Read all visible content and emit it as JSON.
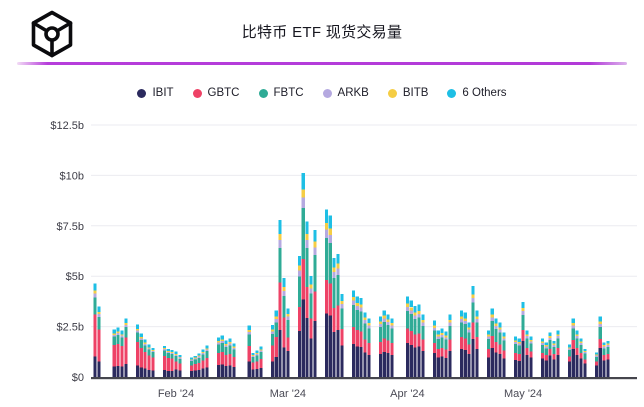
{
  "header": {
    "title": "比特币 ETF 现货交易量",
    "logo": "blockworks-cube-logo"
  },
  "accent": {
    "divider_gradient_main": "#b23ad8",
    "divider_gradient_light": "#f2dcf5"
  },
  "chart_data": {
    "type": "bar",
    "stacked": true,
    "title": "比特币 ETF 现货交易量",
    "xlabel": "",
    "ylabel": "",
    "y_unit": "USD billions",
    "ylim": [
      0,
      12.5
    ],
    "grid": true,
    "legend_position": "top",
    "y_ticks": [
      {
        "label": "$12.5b",
        "value": 12.5
      },
      {
        "label": "$10b",
        "value": 10
      },
      {
        "label": "$7.5b",
        "value": 7.5
      },
      {
        "label": "$5b",
        "value": 5
      },
      {
        "label": "$2.5b",
        "value": 2.5
      },
      {
        "label": "$0",
        "value": 0
      }
    ],
    "x_ticks": [
      {
        "label": "Feb '24",
        "date": "2024-02-01"
      },
      {
        "label": "Mar '24",
        "date": "2024-03-01"
      },
      {
        "label": "Apr '24",
        "date": "2024-04-01"
      },
      {
        "label": "May '24",
        "date": "2024-05-01"
      }
    ],
    "series": [
      {
        "name": "IBIT",
        "color": "#2b2a5e"
      },
      {
        "name": "GBTC",
        "color": "#ee4266"
      },
      {
        "name": "FBTC",
        "color": "#2fab96"
      },
      {
        "name": "ARKB",
        "color": "#b5a9e0"
      },
      {
        "name": "BITB",
        "color": "#f5cd44"
      },
      {
        "name": "6 Others",
        "color": "#1ebfe5"
      }
    ],
    "series_order": [
      "IBIT",
      "GBTC",
      "FBTC",
      "ARKB",
      "BITB",
      "6 Others"
    ],
    "days": [
      {
        "date": "2024-01-11",
        "v": [
          1.02,
          2.09,
          0.84,
          0.19,
          0.14,
          0.37
        ]
      },
      {
        "date": "2024-01-12",
        "v": [
          0.77,
          1.58,
          0.63,
          0.14,
          0.11,
          0.27
        ]
      },
      {
        "date": "2024-01-16",
        "v": [
          0.52,
          1.06,
          0.42,
          0.09,
          0.07,
          0.19
        ]
      },
      {
        "date": "2024-01-17",
        "v": [
          0.54,
          1.1,
          0.44,
          0.1,
          0.07,
          0.2
        ]
      },
      {
        "date": "2024-01-18",
        "v": [
          0.51,
          1.04,
          0.41,
          0.09,
          0.07,
          0.18
        ]
      },
      {
        "date": "2024-01-19",
        "v": [
          0.64,
          1.31,
          0.52,
          0.12,
          0.09,
          0.22
        ]
      },
      {
        "date": "2024-01-22",
        "v": [
          0.57,
          1.17,
          0.47,
          0.1,
          0.08,
          0.21
        ]
      },
      {
        "date": "2024-01-23",
        "v": [
          0.47,
          0.97,
          0.39,
          0.09,
          0.06,
          0.17
        ]
      },
      {
        "date": "2024-01-24",
        "v": [
          0.41,
          0.83,
          0.33,
          0.07,
          0.06,
          0.15
        ]
      },
      {
        "date": "2024-01-25",
        "v": [
          0.35,
          0.72,
          0.29,
          0.06,
          0.05,
          0.13
        ]
      },
      {
        "date": "2024-01-26",
        "v": [
          0.32,
          0.65,
          0.26,
          0.06,
          0.04,
          0.12
        ]
      },
      {
        "date": "2024-01-29",
        "v": [
          0.34,
          0.7,
          0.28,
          0.06,
          0.05,
          0.12
        ]
      },
      {
        "date": "2024-01-30",
        "v": [
          0.31,
          0.63,
          0.25,
          0.06,
          0.04,
          0.11
        ]
      },
      {
        "date": "2024-01-31",
        "v": [
          0.3,
          0.61,
          0.24,
          0.05,
          0.04,
          0.11
        ]
      },
      {
        "date": "2024-02-01",
        "v": [
          0.38,
          0.38,
          0.28,
          0.06,
          0.05,
          0.11
        ]
      },
      {
        "date": "2024-02-02",
        "v": [
          0.33,
          0.33,
          0.24,
          0.06,
          0.04,
          0.1
        ]
      },
      {
        "date": "2024-02-05",
        "v": [
          0.29,
          0.29,
          0.21,
          0.05,
          0.04,
          0.09
        ]
      },
      {
        "date": "2024-02-06",
        "v": [
          0.32,
          0.32,
          0.23,
          0.05,
          0.04,
          0.09
        ]
      },
      {
        "date": "2024-02-07",
        "v": [
          0.35,
          0.35,
          0.25,
          0.06,
          0.05,
          0.1
        ]
      },
      {
        "date": "2024-02-08",
        "v": [
          0.41,
          0.41,
          0.3,
          0.07,
          0.05,
          0.12
        ]
      },
      {
        "date": "2024-02-09",
        "v": [
          0.47,
          0.47,
          0.34,
          0.08,
          0.06,
          0.14
        ]
      },
      {
        "date": "2024-02-12",
        "v": [
          0.59,
          0.59,
          0.43,
          0.1,
          0.08,
          0.18
        ]
      },
      {
        "date": "2024-02-13",
        "v": [
          0.62,
          0.62,
          0.45,
          0.1,
          0.08,
          0.18
        ]
      },
      {
        "date": "2024-02-14",
        "v": [
          0.54,
          0.54,
          0.4,
          0.09,
          0.07,
          0.16
        ]
      },
      {
        "date": "2024-02-15",
        "v": [
          0.57,
          0.57,
          0.42,
          0.1,
          0.08,
          0.17
        ]
      },
      {
        "date": "2024-02-16",
        "v": [
          0.5,
          0.5,
          0.36,
          0.08,
          0.07,
          0.15
        ]
      },
      {
        "date": "2024-02-20",
        "v": [
          0.77,
          0.77,
          0.56,
          0.13,
          0.1,
          0.23
        ]
      },
      {
        "date": "2024-02-21",
        "v": [
          0.36,
          0.36,
          0.26,
          0.06,
          0.05,
          0.11
        ]
      },
      {
        "date": "2024-02-22",
        "v": [
          0.39,
          0.39,
          0.29,
          0.07,
          0.05,
          0.12
        ]
      },
      {
        "date": "2024-02-23",
        "v": [
          0.45,
          0.45,
          0.33,
          0.08,
          0.06,
          0.14
        ]
      },
      {
        "date": "2024-02-26",
        "v": [
          0.78,
          0.78,
          0.57,
          0.13,
          0.1,
          0.23
        ]
      },
      {
        "date": "2024-02-27",
        "v": [
          0.99,
          0.99,
          0.73,
          0.17,
          0.13,
          0.3
        ]
      },
      {
        "date": "2024-02-28",
        "v": [
          2.34,
          2.34,
          1.72,
          0.39,
          0.31,
          0.7
        ]
      },
      {
        "date": "2024-02-29",
        "v": [
          1.47,
          1.47,
          1.08,
          0.25,
          0.2,
          0.44
        ]
      },
      {
        "date": "2024-03-01",
        "v": [
          1.29,
          0.68,
          0.85,
          0.17,
          0.14,
          0.27
        ]
      },
      {
        "date": "2024-03-04",
        "v": [
          2.28,
          1.2,
          1.5,
          0.3,
          0.24,
          0.48
        ]
      },
      {
        "date": "2024-03-05",
        "v": [
          3.84,
          2.02,
          2.53,
          0.51,
          0.4,
          0.81
        ]
      },
      {
        "date": "2024-03-06",
        "v": [
          2.93,
          1.54,
          1.93,
          0.39,
          0.31,
          0.62
        ]
      },
      {
        "date": "2024-03-07",
        "v": [
          1.9,
          1.0,
          1.25,
          0.25,
          0.2,
          0.4
        ]
      },
      {
        "date": "2024-03-08",
        "v": [
          2.77,
          1.46,
          1.83,
          0.37,
          0.29,
          0.58
        ]
      },
      {
        "date": "2024-03-11",
        "v": [
          3.15,
          1.66,
          2.08,
          0.42,
          0.33,
          0.66
        ]
      },
      {
        "date": "2024-03-12",
        "v": [
          3.04,
          1.6,
          2.0,
          0.4,
          0.32,
          0.64
        ]
      },
      {
        "date": "2024-03-13",
        "v": [
          2.24,
          1.18,
          1.48,
          0.3,
          0.24,
          0.47
        ]
      },
      {
        "date": "2024-03-14",
        "v": [
          2.32,
          1.22,
          1.53,
          0.31,
          0.24,
          0.49
        ]
      },
      {
        "date": "2024-03-15",
        "v": [
          1.56,
          0.82,
          1.03,
          0.21,
          0.16,
          0.33
        ]
      },
      {
        "date": "2024-03-18",
        "v": [
          1.63,
          0.86,
          1.08,
          0.22,
          0.17,
          0.34
        ]
      },
      {
        "date": "2024-03-19",
        "v": [
          1.52,
          0.8,
          1.0,
          0.2,
          0.16,
          0.32
        ]
      },
      {
        "date": "2024-03-20",
        "v": [
          1.48,
          0.78,
          0.98,
          0.2,
          0.16,
          0.31
        ]
      },
      {
        "date": "2024-03-21",
        "v": [
          1.22,
          0.64,
          0.8,
          0.16,
          0.13,
          0.26
        ]
      },
      {
        "date": "2024-03-22",
        "v": [
          1.1,
          0.58,
          0.73,
          0.15,
          0.12,
          0.23
        ]
      },
      {
        "date": "2024-03-25",
        "v": [
          1.14,
          0.6,
          0.75,
          0.15,
          0.12,
          0.24
        ]
      },
      {
        "date": "2024-03-26",
        "v": [
          1.25,
          0.66,
          0.83,
          0.17,
          0.13,
          0.26
        ]
      },
      {
        "date": "2024-03-27",
        "v": [
          1.18,
          0.62,
          0.78,
          0.16,
          0.12,
          0.25
        ]
      },
      {
        "date": "2024-03-28",
        "v": [
          1.1,
          0.58,
          0.73,
          0.15,
          0.12,
          0.23
        ]
      },
      {
        "date": "2024-04-01",
        "v": [
          1.68,
          0.72,
          0.88,
          0.2,
          0.16,
          0.36
        ]
      },
      {
        "date": "2024-04-02",
        "v": [
          1.6,
          0.68,
          0.84,
          0.19,
          0.15,
          0.34
        ]
      },
      {
        "date": "2024-04-03",
        "v": [
          1.47,
          0.63,
          0.77,
          0.18,
          0.14,
          0.32
        ]
      },
      {
        "date": "2024-04-04",
        "v": [
          1.51,
          0.65,
          0.79,
          0.18,
          0.14,
          0.32
        ]
      },
      {
        "date": "2024-04-05",
        "v": [
          1.3,
          0.56,
          0.68,
          0.16,
          0.12,
          0.28
        ]
      },
      {
        "date": "2024-04-08",
        "v": [
          1.18,
          0.5,
          0.62,
          0.14,
          0.11,
          0.25
        ]
      },
      {
        "date": "2024-04-09",
        "v": [
          0.97,
          0.41,
          0.51,
          0.12,
          0.09,
          0.21
        ]
      },
      {
        "date": "2024-04-10",
        "v": [
          1.01,
          0.43,
          0.53,
          0.12,
          0.1,
          0.22
        ]
      },
      {
        "date": "2024-04-11",
        "v": [
          0.95,
          0.41,
          0.5,
          0.11,
          0.09,
          0.2
        ]
      },
      {
        "date": "2024-04-12",
        "v": [
          1.3,
          0.56,
          0.68,
          0.16,
          0.12,
          0.28
        ]
      },
      {
        "date": "2024-04-15",
        "v": [
          1.39,
          0.59,
          0.73,
          0.17,
          0.13,
          0.3
        ]
      },
      {
        "date": "2024-04-16",
        "v": [
          1.34,
          0.58,
          0.7,
          0.16,
          0.13,
          0.29
        ]
      },
      {
        "date": "2024-04-17",
        "v": [
          1.13,
          0.49,
          0.59,
          0.14,
          0.11,
          0.24
        ]
      },
      {
        "date": "2024-04-18",
        "v": [
          1.89,
          0.81,
          0.99,
          0.23,
          0.18,
          0.41
        ]
      },
      {
        "date": "2024-04-19",
        "v": [
          1.39,
          0.59,
          0.73,
          0.17,
          0.13,
          0.3
        ]
      },
      {
        "date": "2024-04-22",
        "v": [
          0.97,
          0.41,
          0.51,
          0.12,
          0.09,
          0.21
        ]
      },
      {
        "date": "2024-04-23",
        "v": [
          1.43,
          0.61,
          0.75,
          0.17,
          0.14,
          0.31
        ]
      },
      {
        "date": "2024-04-24",
        "v": [
          1.22,
          0.52,
          0.64,
          0.15,
          0.12,
          0.26
        ]
      },
      {
        "date": "2024-04-25",
        "v": [
          1.13,
          0.49,
          0.59,
          0.14,
          0.11,
          0.24
        ]
      },
      {
        "date": "2024-04-26",
        "v": [
          0.92,
          0.4,
          0.48,
          0.11,
          0.09,
          0.2
        ]
      },
      {
        "date": "2024-04-29",
        "v": [
          0.84,
          0.36,
          0.44,
          0.1,
          0.08,
          0.18
        ]
      },
      {
        "date": "2024-04-30",
        "v": [
          0.8,
          0.34,
          0.42,
          0.1,
          0.08,
          0.17
        ]
      },
      {
        "date": "2024-05-01",
        "v": [
          1.78,
          0.56,
          0.74,
          0.19,
          0.15,
          0.3
        ]
      },
      {
        "date": "2024-05-02",
        "v": [
          1.1,
          0.35,
          0.46,
          0.12,
          0.09,
          0.18
        ]
      },
      {
        "date": "2024-05-03",
        "v": [
          0.96,
          0.3,
          0.4,
          0.1,
          0.08,
          0.16
        ]
      },
      {
        "date": "2024-05-06",
        "v": [
          0.91,
          0.29,
          0.38,
          0.1,
          0.08,
          0.15
        ]
      },
      {
        "date": "2024-05-07",
        "v": [
          0.82,
          0.26,
          0.34,
          0.09,
          0.07,
          0.14
        ]
      },
      {
        "date": "2024-05-08",
        "v": [
          1.06,
          0.33,
          0.44,
          0.11,
          0.09,
          0.18
        ]
      },
      {
        "date": "2024-05-09",
        "v": [
          0.86,
          0.27,
          0.36,
          0.09,
          0.07,
          0.14
        ]
      },
      {
        "date": "2024-05-10",
        "v": [
          1.1,
          0.35,
          0.46,
          0.12,
          0.09,
          0.18
        ]
      },
      {
        "date": "2024-05-13",
        "v": [
          0.77,
          0.24,
          0.32,
          0.08,
          0.06,
          0.13
        ]
      },
      {
        "date": "2024-05-14",
        "v": [
          1.39,
          0.44,
          0.58,
          0.15,
          0.12,
          0.23
        ]
      },
      {
        "date": "2024-05-15",
        "v": [
          1.1,
          0.35,
          0.46,
          0.12,
          0.09,
          0.18
        ]
      },
      {
        "date": "2024-05-16",
        "v": [
          0.91,
          0.29,
          0.38,
          0.1,
          0.08,
          0.15
        ]
      },
      {
        "date": "2024-05-17",
        "v": [
          0.67,
          0.21,
          0.28,
          0.07,
          0.06,
          0.11
        ]
      },
      {
        "date": "2024-05-20",
        "v": [
          0.58,
          0.18,
          0.24,
          0.06,
          0.05,
          0.1
        ]
      },
      {
        "date": "2024-05-21",
        "v": [
          1.44,
          0.45,
          0.6,
          0.15,
          0.12,
          0.24
        ]
      },
      {
        "date": "2024-05-22",
        "v": [
          0.82,
          0.26,
          0.34,
          0.09,
          0.07,
          0.14
        ]
      },
      {
        "date": "2024-05-23",
        "v": [
          0.86,
          0.27,
          0.36,
          0.09,
          0.07,
          0.14
        ]
      }
    ]
  }
}
